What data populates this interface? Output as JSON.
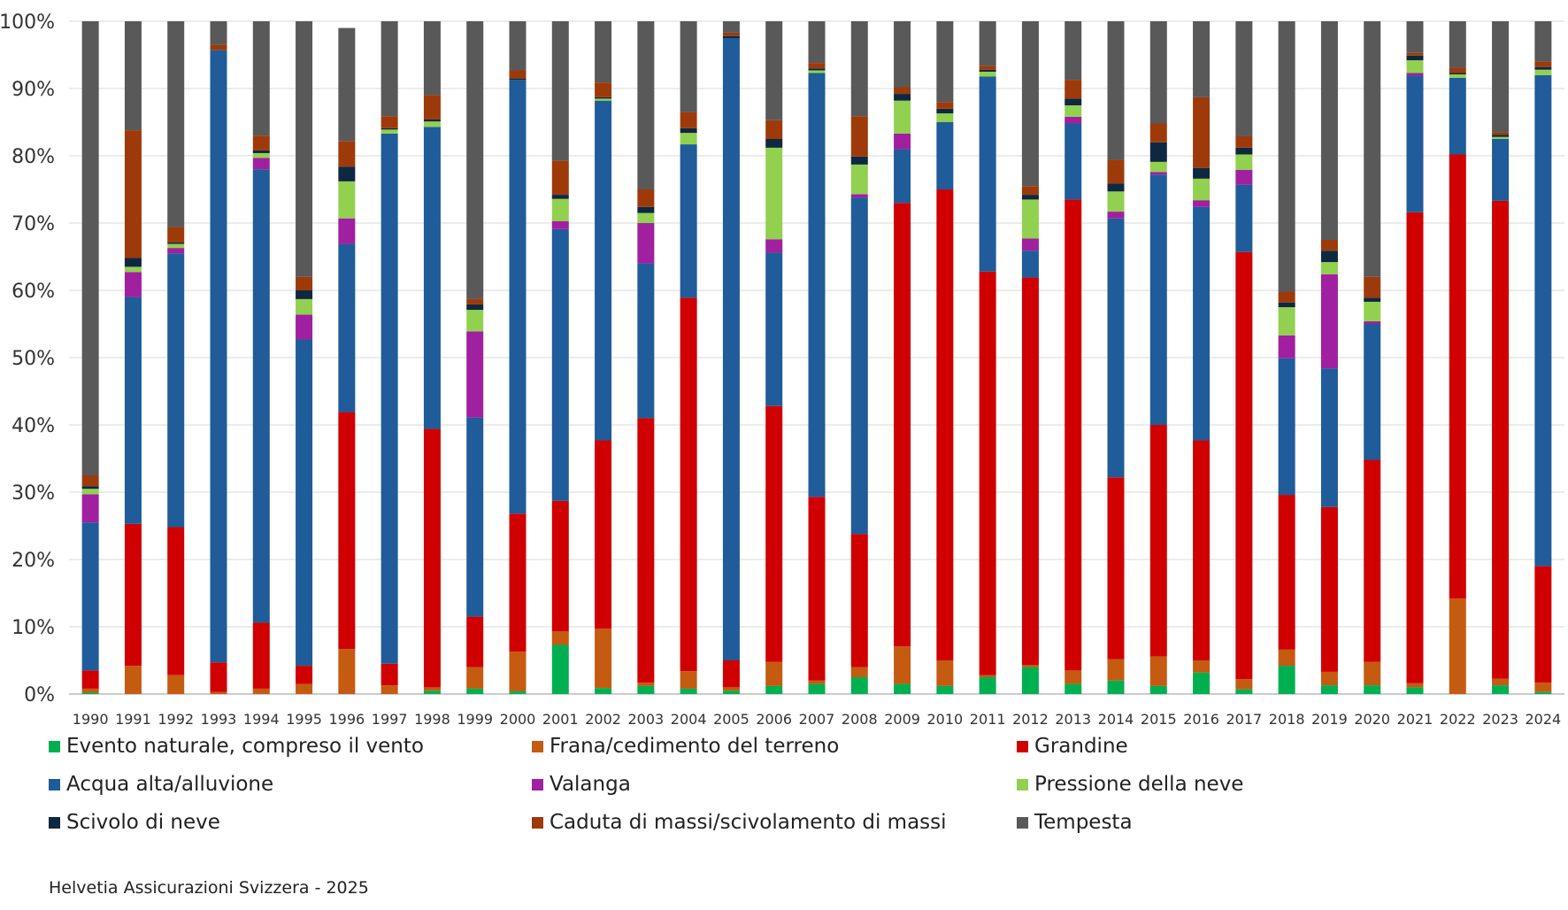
{
  "chart_data": {
    "type": "bar",
    "stacked": true,
    "normalized": true,
    "ylim": [
      0,
      100
    ],
    "y_ticks": [
      "0%",
      "10%",
      "20%",
      "30%",
      "40%",
      "50%",
      "60%",
      "70%",
      "80%",
      "90%",
      "100%"
    ],
    "grid": true,
    "legend_position": "bottom",
    "categories": [
      "1990",
      "1991",
      "1992",
      "1993",
      "1994",
      "1995",
      "1996",
      "1997",
      "1998",
      "1999",
      "2000",
      "2001",
      "2002",
      "2003",
      "2004",
      "2005",
      "2006",
      "2007",
      "2008",
      "2009",
      "2010",
      "2011",
      "2012",
      "2013",
      "2014",
      "2015",
      "2016",
      "2017",
      "2018",
      "2019",
      "2020",
      "2021",
      "2022",
      "2023",
      "2024"
    ],
    "series": [
      {
        "name": "Evento naturale, compreso il vento",
        "color": "#00b050",
        "values": [
          0.2,
          0,
          0,
          0,
          0,
          0,
          0,
          0,
          0.5,
          0.8,
          0.4,
          7.3,
          0.9,
          1.2,
          0.8,
          0.5,
          1.2,
          1.5,
          2.5,
          1.5,
          1.2,
          2.5,
          4.0,
          1.5,
          2.0,
          1.2,
          3.2,
          0.7,
          4.2,
          1.3,
          1.3,
          1.0,
          0,
          1.3,
          0.3
        ]
      },
      {
        "name": "Frana/cedimento del terreno",
        "color": "#c55a11",
        "values": [
          0.6,
          4.2,
          2.8,
          0.3,
          0.8,
          1.5,
          6.7,
          1.3,
          0.5,
          3.2,
          5.9,
          2.0,
          8.8,
          0.5,
          2.6,
          0.5,
          3.6,
          0.5,
          1.5,
          5.6,
          3.8,
          0.3,
          0.3,
          2.0,
          3.2,
          4.4,
          1.8,
          1.5,
          2.4,
          2.0,
          3.5,
          0.6,
          14.2,
          1.0,
          1.4
        ]
      },
      {
        "name": "Grandine",
        "color": "#d00000",
        "values": [
          2.7,
          21.1,
          22.0,
          4.4,
          9.8,
          2.7,
          35.2,
          3.2,
          38.4,
          7.5,
          20.5,
          19.4,
          28.0,
          39.3,
          55.5,
          4.0,
          38.0,
          27.3,
          19.8,
          65.9,
          70.0,
          60.0,
          57.6,
          70.0,
          27.0,
          34.4,
          32.7,
          63.5,
          23.0,
          24.5,
          30.0,
          70.0,
          66.0,
          71.0,
          17.3
        ]
      },
      {
        "name": "Acqua alta/alluvione",
        "color": "#1f5c99",
        "values": [
          22.0,
          33.7,
          40.7,
          91.0,
          67.4,
          48.5,
          25.0,
          78.8,
          44.9,
          29.6,
          64.5,
          40.4,
          50.5,
          23.0,
          22.8,
          92.5,
          22.8,
          63.0,
          50.0,
          8.0,
          10.0,
          29.0,
          4.0,
          11.3,
          38.5,
          37.2,
          34.7,
          10.0,
          20.3,
          20.6,
          20.2,
          20.3,
          11.4,
          9.2,
          73.0
        ]
      },
      {
        "name": "Valanga",
        "color": "#a020a0",
        "values": [
          4.2,
          3.7,
          0.8,
          0,
          1.7,
          3.7,
          3.8,
          0,
          0,
          12.8,
          0,
          1.2,
          0,
          6.0,
          0,
          0,
          2.0,
          0,
          0.5,
          2.3,
          0,
          0,
          1.8,
          1.0,
          1.0,
          0.4,
          1.0,
          2.2,
          3.4,
          14.0,
          0.4,
          0.4,
          0,
          0,
          0
        ]
      },
      {
        "name": "Pressione della neve",
        "color": "#92d050",
        "values": [
          0.8,
          0.8,
          0.6,
          0,
          0.7,
          2.3,
          5.5,
          0.6,
          0.8,
          3.2,
          0,
          3.3,
          0.3,
          1.5,
          1.7,
          0,
          13.6,
          0.4,
          4.4,
          4.9,
          1.3,
          0.7,
          5.8,
          1.7,
          3.0,
          1.5,
          3.2,
          2.3,
          4.2,
          1.8,
          2.9,
          1.9,
          0.5,
          0.3,
          0.8
        ]
      },
      {
        "name": "Scivolo di neve",
        "color": "#0e2841",
        "values": [
          0.4,
          1.3,
          0.2,
          0,
          0.4,
          1.3,
          2.2,
          0.2,
          0.3,
          0.8,
          0.2,
          0.6,
          0.2,
          0.9,
          0.7,
          0.3,
          1.3,
          0.3,
          1.2,
          1.0,
          0.7,
          0.3,
          0.7,
          1.0,
          1.2,
          2.9,
          1.6,
          1.0,
          0.7,
          1.7,
          0.6,
          0.7,
          0.2,
          0.3,
          0.4
        ]
      },
      {
        "name": "Caduta di massi/scivolamento di massi",
        "color": "#9e3a0a",
        "values": [
          1.6,
          19.0,
          2.3,
          0.8,
          2.2,
          2.0,
          3.8,
          1.8,
          3.6,
          0.8,
          1.2,
          5.1,
          2.2,
          2.6,
          2.4,
          0.5,
          2.8,
          0.8,
          6.0,
          1.0,
          1.0,
          0.6,
          1.3,
          2.8,
          3.5,
          2.8,
          10.5,
          1.7,
          1.6,
          1.6,
          3.1,
          0.4,
          0.8,
          0.4,
          0.8
        ]
      },
      {
        "name": "Tempesta",
        "color": "#595959",
        "values": [
          67.5,
          16.2,
          30.6,
          3.5,
          17.0,
          38.0,
          16.8,
          14.1,
          11.0,
          41.3,
          7.3,
          20.7,
          9.1,
          25.0,
          13.5,
          1.7,
          14.7,
          6.2,
          14.1,
          9.8,
          12.0,
          6.6,
          24.5,
          8.7,
          20.6,
          15.2,
          11.3,
          17.1,
          40.2,
          32.5,
          38.0,
          4.7,
          6.9,
          16.5,
          6.0
        ]
      }
    ]
  },
  "source": "Helvetia Assicurazioni Svizzera - 2025"
}
